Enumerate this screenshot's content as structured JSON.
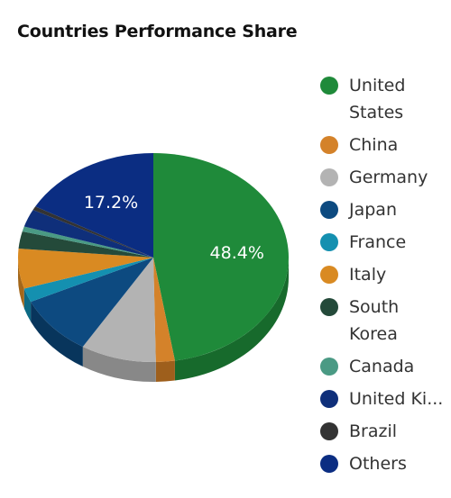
{
  "chart_data": {
    "type": "pie",
    "title": "Countries Performance Share",
    "slices": [
      {
        "name": "United States",
        "value": 48.4,
        "color": "#1f8a3a",
        "side": "#176a2c",
        "label": "48.4%"
      },
      {
        "name": "China",
        "value": 2.3,
        "color": "#d4822a",
        "side": "#9e5f1c",
        "label": ""
      },
      {
        "name": "Germany",
        "value": 9.2,
        "color": "#b3b3b3",
        "side": "#888888",
        "label": ""
      },
      {
        "name": "Japan",
        "value": 9.5,
        "color": "#0d4a80",
        "side": "#08355c",
        "label": ""
      },
      {
        "name": "France",
        "value": 2.2,
        "color": "#1490b0",
        "side": "#0c6a84",
        "label": ""
      },
      {
        "name": "Italy",
        "value": 6.3,
        "color": "#d98a22",
        "side": "#a4671a",
        "label": ""
      },
      {
        "name": "South Korea",
        "value": 2.7,
        "color": "#244a3a",
        "side": "#19362a",
        "label": ""
      },
      {
        "name": "Canada",
        "value": 0.8,
        "color": "#4a9a84",
        "side": "#357362",
        "label": ""
      },
      {
        "name": "United Ki...",
        "value": 2.8,
        "color": "#0f2f7a",
        "side": "#0a225a",
        "label": ""
      },
      {
        "name": "Brazil",
        "value": 0.6,
        "color": "#333333",
        "side": "#222222",
        "label": ""
      },
      {
        "name": "Others",
        "value": 17.2,
        "color": "#0b2d82",
        "side": "#072060",
        "label": "17.2%"
      }
    ]
  },
  "legend": {
    "items": [
      {
        "label": "United States",
        "color": "#1f8a3a"
      },
      {
        "label": "China",
        "color": "#d4822a"
      },
      {
        "label": "Germany",
        "color": "#b3b3b3"
      },
      {
        "label": "Japan",
        "color": "#0d4a80"
      },
      {
        "label": "France",
        "color": "#1490b0"
      },
      {
        "label": "Italy",
        "color": "#d98a22"
      },
      {
        "label": "South Korea",
        "color": "#244a3a"
      },
      {
        "label": "Canada",
        "color": "#4a9a84"
      },
      {
        "label": "United Ki...",
        "color": "#0f2f7a"
      },
      {
        "label": "Brazil",
        "color": "#333333"
      },
      {
        "label": "Others",
        "color": "#0b2d82"
      }
    ]
  }
}
